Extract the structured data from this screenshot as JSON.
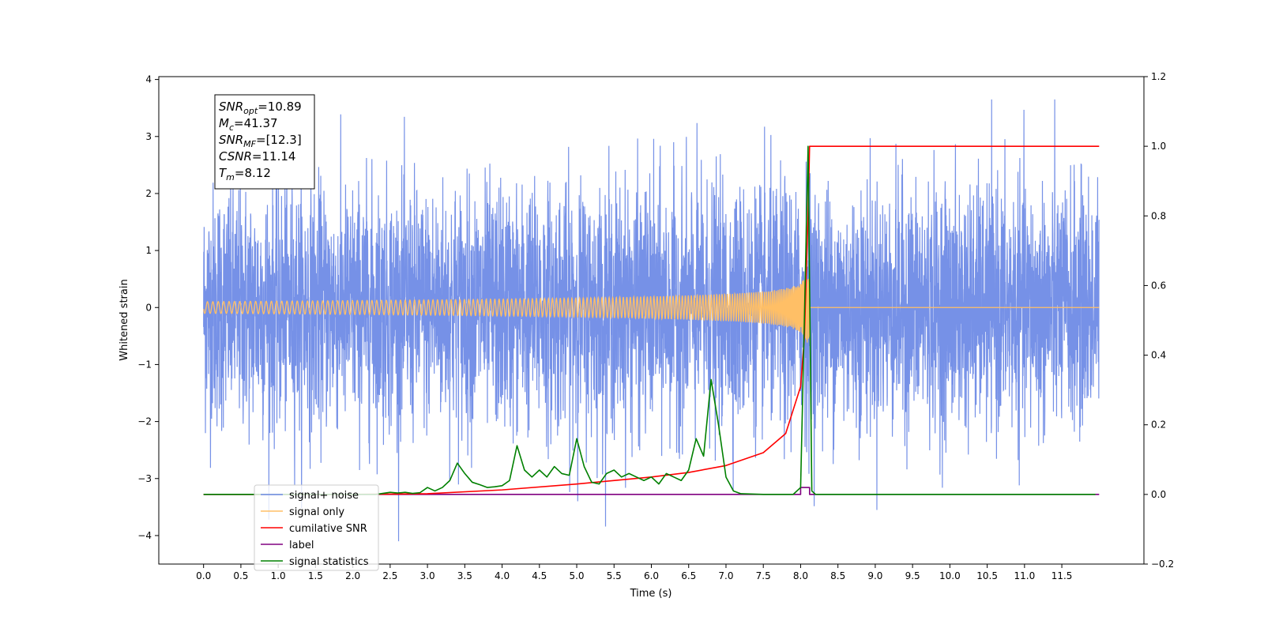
{
  "chart_data": {
    "type": "line",
    "xlabel": "Time (s)",
    "ylabel": "Whitened strain",
    "xlim": [
      -0.6,
      12.6
    ],
    "ylim_left": [
      -4.5,
      4.05
    ],
    "ylim_right": [
      -0.2,
      1.2
    ],
    "x_ticks": [
      "0.0",
      "0.5",
      "1.0",
      "1.5",
      "2.0",
      "2.5",
      "3.0",
      "3.5",
      "4.0",
      "4.5",
      "5.0",
      "5.5",
      "6.0",
      "6.5",
      "7.0",
      "7.5",
      "8.0",
      "8.5",
      "9.0",
      "9.5",
      "10.0",
      "10.5",
      "11.0",
      "11.5"
    ],
    "y_ticks_left": [
      4,
      3,
      2,
      1,
      0,
      -1,
      -2,
      -3,
      -4
    ],
    "y_tick_labels_left": [
      "4",
      "3",
      "2",
      "1",
      "0",
      "−1",
      "−2",
      "−3",
      "−4"
    ],
    "y_ticks_right": [
      1.2,
      1.0,
      0.8,
      0.6,
      0.4,
      0.2,
      0.0,
      -0.2
    ],
    "y_tick_labels_right": [
      "1.2",
      "1.0",
      "0.8",
      "0.6",
      "0.4",
      "0.2",
      "0.0",
      "−0.2"
    ],
    "grid": false,
    "legend_position": "lower-left",
    "series": [
      {
        "name": "signal+ noise",
        "color": "#6f8be6",
        "axis": "left",
        "description": "whitened strain, noise ~ N(0,1), 0.0–12.0 s",
        "x_range": [
          0.0,
          12.0
        ],
        "y_range": [
          -4.1,
          3.65
        ]
      },
      {
        "name": "signal only",
        "color": "#ffbf66",
        "axis": "left",
        "description": "chirp waveform, merger at 8.12 s",
        "x_range": [
          0.0,
          12.0
        ],
        "y_range": [
          -0.6,
          0.6
        ]
      },
      {
        "name": "cumilative SNR",
        "color": "#ff0000",
        "axis": "right",
        "x": [
          0.0,
          2.0,
          3.0,
          4.0,
          5.0,
          6.0,
          6.5,
          7.0,
          7.5,
          7.8,
          8.0,
          8.05,
          8.1,
          8.12,
          12.0
        ],
        "y": [
          0.0,
          0.0,
          0.002,
          0.013,
          0.03,
          0.05,
          0.063,
          0.083,
          0.12,
          0.175,
          0.31,
          0.45,
          0.8,
          1.0,
          1.0
        ]
      },
      {
        "name": "label",
        "color": "#800080",
        "axis": "right",
        "x": [
          0.0,
          8.0,
          8.0,
          8.12,
          8.12,
          12.0
        ],
        "y": [
          0.0,
          0.0,
          0.02,
          0.02,
          0.0,
          0.0
        ]
      },
      {
        "name": "signal statistics",
        "color": "#008000",
        "axis": "right",
        "x": [
          0.0,
          2.3,
          2.4,
          2.5,
          2.6,
          2.7,
          2.8,
          2.9,
          3.0,
          3.1,
          3.2,
          3.3,
          3.4,
          3.5,
          3.6,
          3.7,
          3.8,
          3.9,
          4.0,
          4.1,
          4.2,
          4.3,
          4.4,
          4.5,
          4.6,
          4.7,
          4.8,
          4.9,
          5.0,
          5.1,
          5.2,
          5.3,
          5.4,
          5.5,
          5.6,
          5.7,
          5.8,
          5.9,
          6.0,
          6.1,
          6.2,
          6.3,
          6.4,
          6.5,
          6.6,
          6.7,
          6.8,
          6.9,
          7.0,
          7.1,
          7.2,
          7.5,
          7.9,
          8.0,
          8.05,
          8.1,
          8.15,
          8.2,
          11.95
        ],
        "y": [
          0.0,
          0.0,
          0.003,
          0.006,
          0.004,
          0.006,
          0.003,
          0.005,
          0.02,
          0.01,
          0.02,
          0.04,
          0.09,
          0.06,
          0.035,
          0.028,
          0.02,
          0.022,
          0.025,
          0.04,
          0.14,
          0.07,
          0.05,
          0.07,
          0.05,
          0.08,
          0.06,
          0.055,
          0.16,
          0.08,
          0.035,
          0.03,
          0.06,
          0.07,
          0.05,
          0.06,
          0.05,
          0.04,
          0.05,
          0.03,
          0.06,
          0.05,
          0.04,
          0.07,
          0.16,
          0.11,
          0.33,
          0.2,
          0.05,
          0.01,
          0.002,
          0.0,
          0.0,
          0.02,
          0.5,
          1.0,
          0.01,
          0.0,
          0.0
        ]
      }
    ],
    "annotation": [
      {
        "main": "SNR",
        "sub": "opt",
        "value": "=10.89"
      },
      {
        "main": "M",
        "sub": "c",
        "value": "=41.37"
      },
      {
        "main": "SNR",
        "sub": "MF",
        "value": "=[12.3]"
      },
      {
        "main": "CSNR",
        "sub": "",
        "value": "=11.14"
      },
      {
        "main": "T",
        "sub": "m",
        "value": "=8.12"
      }
    ],
    "legend": [
      {
        "label": "signal+ noise",
        "color": "#6f8be6"
      },
      {
        "label": "signal only",
        "color": "#ffbf66"
      },
      {
        "label": "cumilative SNR",
        "color": "#ff0000"
      },
      {
        "label": "label",
        "color": "#800080"
      },
      {
        "label": "signal statistics",
        "color": "#008000"
      }
    ]
  }
}
